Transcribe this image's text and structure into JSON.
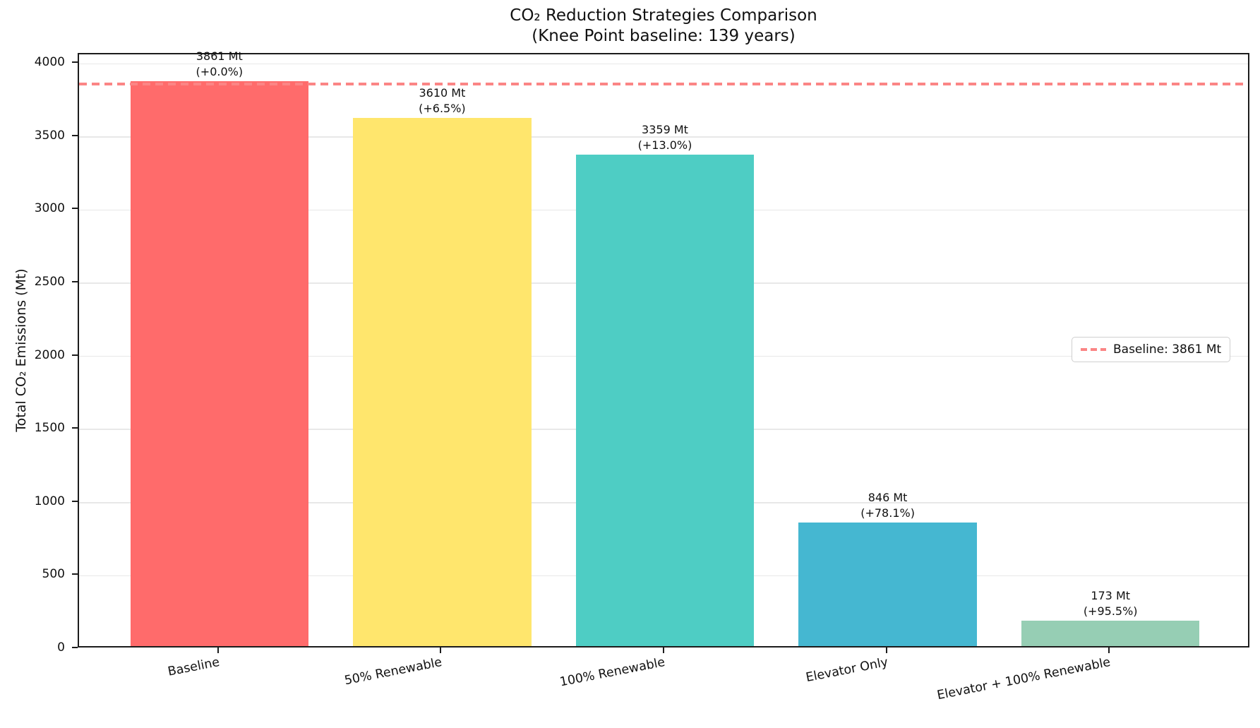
{
  "title": "CO₂ Reduction Strategies Comparison",
  "subtitle": "(Knee Point baseline: 139 years)",
  "chart_data": {
    "type": "bar",
    "title": "CO₂ Reduction Strategies Comparison",
    "subtitle": "(Knee Point baseline: 139 years)",
    "categories": [
      "Baseline",
      "50% Renewable",
      "100% Renewable",
      "Elevator Only",
      "Elevator + 100% Renewable"
    ],
    "values": [
      3861,
      3610,
      3359,
      846,
      173
    ],
    "bar_annotations": [
      {
        "line1": "3861 Mt",
        "line2": "(+0.0%)"
      },
      {
        "line1": "3610 Mt",
        "line2": "(+6.5%)"
      },
      {
        "line1": "3359 Mt",
        "line2": "(+13.0%)"
      },
      {
        "line1": "846 Mt",
        "line2": "(+78.1%)"
      },
      {
        "line1": "173 Mt",
        "line2": "(+95.5%)"
      }
    ],
    "bar_colors": [
      "#FF6B6B",
      "#FFE66D",
      "#4ECDC4",
      "#45B7D1",
      "#96CEB4"
    ],
    "xlabel": "",
    "ylabel": "Total CO₂ Emissions (Mt)",
    "ylim": [
      0,
      4064
    ],
    "yticks": [
      0,
      500,
      1000,
      1500,
      2000,
      2500,
      3000,
      3500,
      4000
    ],
    "grid": true,
    "x_tick_rotation_deg": 11,
    "bar_width_fraction": 0.8,
    "x_margin_units": 0.63,
    "reference_line": {
      "value": 3861,
      "style": "dashed",
      "color": "#FB8585"
    },
    "legend": {
      "position": "center-right",
      "entries": [
        {
          "label": "Baseline: 3861 Mt",
          "color": "#FB8585",
          "line_style": "dashed"
        }
      ]
    }
  }
}
